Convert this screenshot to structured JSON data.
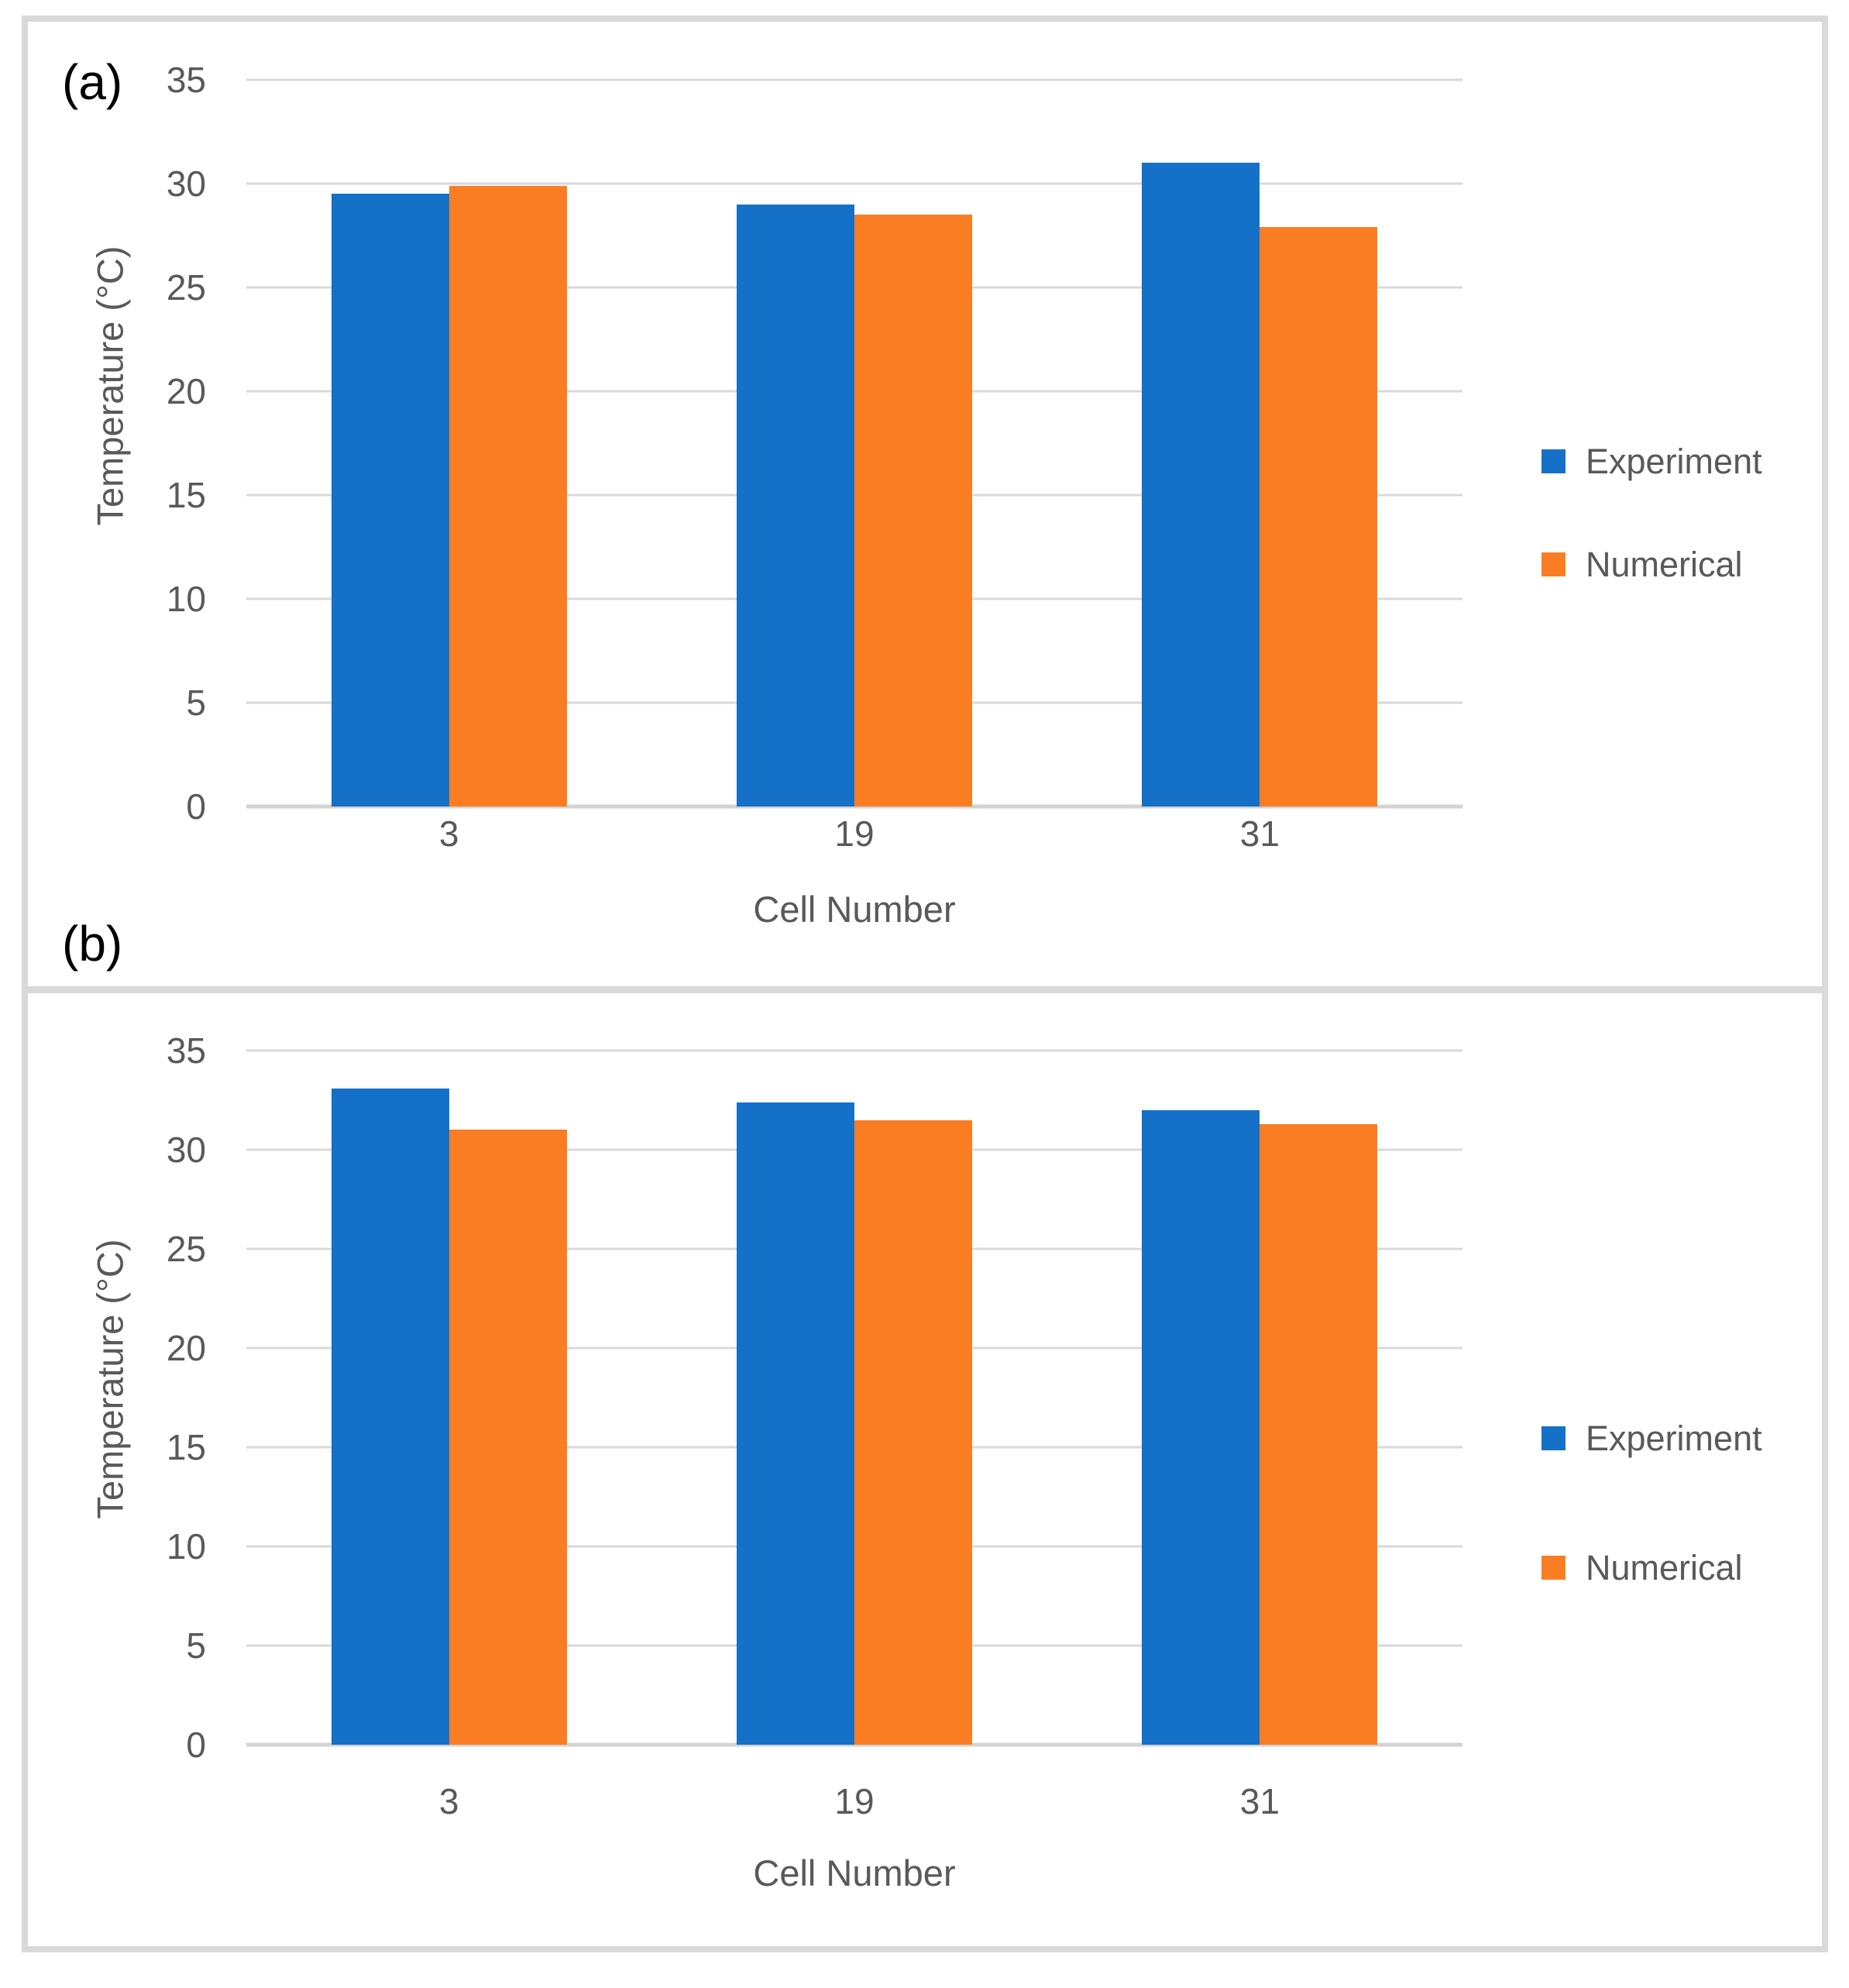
{
  "figure": {
    "description": "Two stacked grouped-bar charts comparing experimental and numerical cell temperatures",
    "panel_labels": [
      "(a)",
      "(b)"
    ]
  },
  "chart_data": [
    {
      "panel_label": "(a)",
      "type": "bar",
      "categories": [
        "3",
        "19",
        "31"
      ],
      "series": [
        {
          "name": "Experiment",
          "color": "#1571C8",
          "values": [
            29.5,
            29.0,
            31.0
          ]
        },
        {
          "name": "Numerical",
          "color": "#FB7D23",
          "values": [
            29.9,
            28.5,
            27.9
          ]
        }
      ],
      "xlabel": "Cell Number",
      "ylabel": "Temperature (°C)",
      "ylim": [
        0,
        35
      ],
      "ytick_step": 5,
      "grid": "horizontal",
      "legend_position": "right"
    },
    {
      "panel_label": "(b)",
      "type": "bar",
      "categories": [
        "3",
        "19",
        "31"
      ],
      "series": [
        {
          "name": "Experiment",
          "color": "#1571C8",
          "values": [
            33.1,
            32.4,
            32.0
          ]
        },
        {
          "name": "Numerical",
          "color": "#FB7D23",
          "values": [
            31.0,
            31.5,
            31.3
          ]
        }
      ],
      "xlabel": "Cell Number",
      "ylabel": "Temperature (°C)",
      "ylim": [
        0,
        35
      ],
      "ytick_step": 5,
      "grid": "horizontal",
      "legend_position": "right"
    }
  ],
  "style_colors": {
    "bar_blue": "#1571C8",
    "bar_orange": "#FB7D23",
    "gridline": "#D9D9D9",
    "axis_text": "#595959",
    "frame_border": "#D9D9D9",
    "panel_label_color": "#000000"
  }
}
